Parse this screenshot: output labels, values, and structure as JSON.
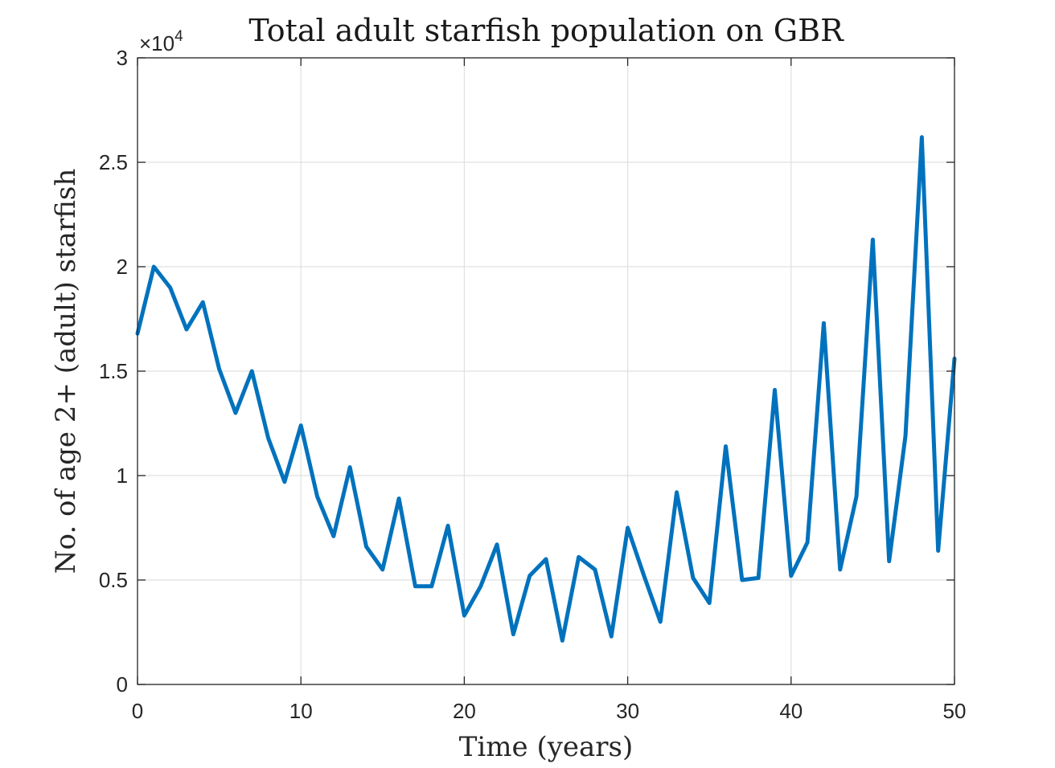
{
  "chart_data": {
    "type": "line",
    "title": "Total adult starfish population on GBR",
    "xlabel": "Time (years)",
    "ylabel": "No. of age 2+ (adult) starfish",
    "xlim": [
      0,
      50
    ],
    "ylim": [
      0,
      30000
    ],
    "y_exponent_label": "×10",
    "y_exponent_power": "4",
    "x_ticks": [
      0,
      10,
      20,
      30,
      40,
      50
    ],
    "x_tick_labels": [
      "0",
      "10",
      "20",
      "30",
      "40",
      "50"
    ],
    "y_ticks": [
      0,
      5000,
      10000,
      15000,
      20000,
      25000,
      30000
    ],
    "y_tick_labels": [
      "0",
      "0.5",
      "1",
      "1.5",
      "2",
      "2.5",
      "3"
    ],
    "grid": true,
    "series": [
      {
        "color": "#0072bd",
        "x": [
          0,
          1,
          2,
          3,
          4,
          5,
          6,
          7,
          8,
          9,
          10,
          11,
          12,
          13,
          14,
          15,
          16,
          17,
          18,
          19,
          20,
          21,
          22,
          23,
          24,
          25,
          26,
          27,
          28,
          29,
          30,
          31,
          32,
          33,
          34,
          35,
          36,
          37,
          38,
          39,
          40,
          41,
          42,
          43,
          44,
          45,
          46,
          47,
          48,
          49,
          50
        ],
        "y": [
          16800,
          20000,
          19000,
          17000,
          18300,
          15100,
          13000,
          15000,
          11800,
          9700,
          12400,
          9000,
          7100,
          10400,
          6600,
          5500,
          8900,
          4700,
          4700,
          7600,
          3300,
          4700,
          6700,
          2400,
          5200,
          6000,
          2100,
          6100,
          5500,
          2300,
          7500,
          5200,
          3000,
          9200,
          5100,
          3900,
          11400,
          5000,
          5100,
          14100,
          5200,
          6800,
          17300,
          5500,
          9000,
          21300,
          5900,
          11900,
          26200,
          6400,
          15600
        ]
      }
    ]
  }
}
